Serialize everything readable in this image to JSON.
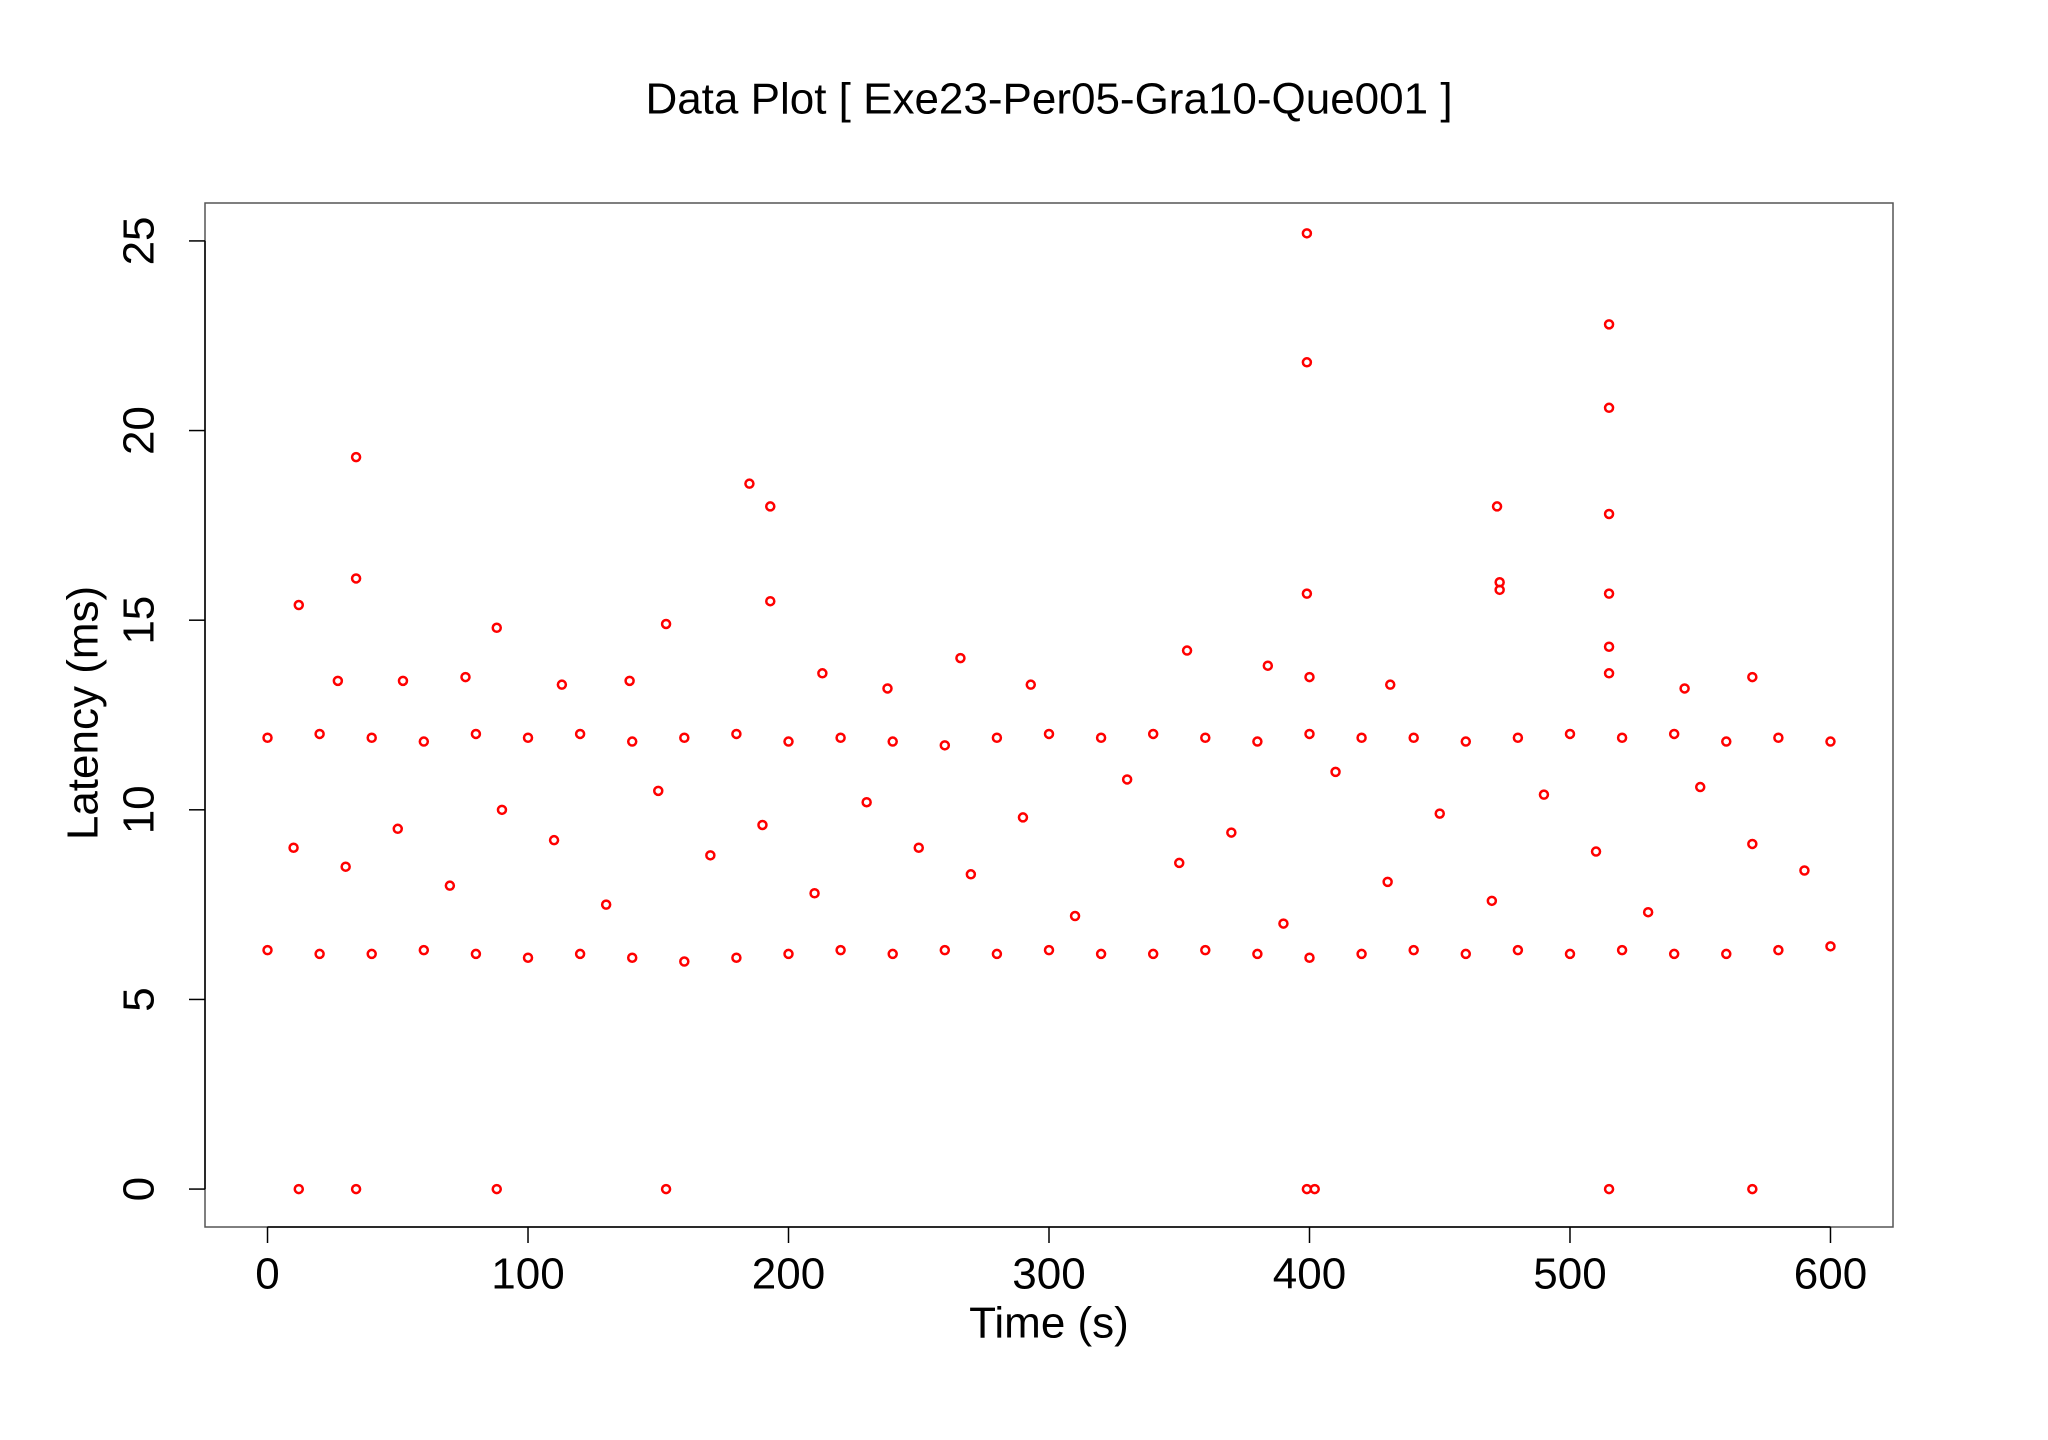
{
  "chart_data": {
    "type": "scatter",
    "title": "Data Plot [ Exe23-Per05-Gra10-Que001 ]",
    "x_label": "Time (s)",
    "y_label": "Latency (ms)",
    "color": "#ff0000",
    "xlim": [
      -24,
      624
    ],
    "ylim": [
      -1.0,
      26.0
    ],
    "xticks": [
      0,
      100,
      200,
      300,
      400,
      500,
      600
    ],
    "yticks": [
      0,
      5,
      10,
      15,
      20,
      25
    ],
    "x": [
      12,
      34,
      34,
      88,
      153,
      185,
      193,
      193,
      266,
      353,
      399,
      399,
      399,
      472,
      473,
      473,
      515,
      515,
      515,
      515,
      515,
      515,
      12,
      34,
      88,
      153,
      399,
      402,
      515,
      570,
      27,
      52,
      76,
      113,
      139,
      213,
      238,
      293,
      384,
      431,
      544,
      570,
      400,
      0,
      20,
      40,
      60,
      80,
      100,
      120,
      140,
      160,
      180,
      200,
      220,
      240,
      260,
      280,
      300,
      320,
      340,
      360,
      380,
      400,
      420,
      440,
      460,
      480,
      500,
      520,
      540,
      560,
      580,
      600,
      0,
      20,
      40,
      60,
      80,
      100,
      120,
      140,
      160,
      180,
      200,
      220,
      240,
      260,
      280,
      300,
      320,
      340,
      360,
      380,
      400,
      420,
      440,
      460,
      480,
      500,
      520,
      540,
      560,
      580,
      600,
      10,
      30,
      50,
      70,
      90,
      110,
      130,
      150,
      170,
      190,
      210,
      230,
      250,
      270,
      290,
      310,
      330,
      350,
      370,
      390,
      410,
      430,
      450,
      470,
      490,
      510,
      530,
      550,
      570,
      590
    ],
    "values": [
      15.4,
      19.3,
      16.1,
      14.8,
      14.9,
      18.6,
      18.0,
      15.5,
      14.0,
      14.2,
      25.2,
      21.8,
      15.7,
      18.0,
      16.0,
      15.8,
      22.8,
      20.6,
      17.8,
      15.7,
      14.3,
      13.6,
      0,
      0,
      0,
      0,
      0,
      0,
      0,
      0,
      13.4,
      13.4,
      13.5,
      13.3,
      13.4,
      13.6,
      13.2,
      13.3,
      13.8,
      13.3,
      13.2,
      13.5,
      13.5,
      6.3,
      6.2,
      6.2,
      6.3,
      6.2,
      6.1,
      6.2,
      6.1,
      6.0,
      6.1,
      6.2,
      6.3,
      6.2,
      6.3,
      6.2,
      6.3,
      6.2,
      6.2,
      6.3,
      6.2,
      6.1,
      6.2,
      6.3,
      6.2,
      6.3,
      6.2,
      6.3,
      6.2,
      6.2,
      6.3,
      6.4,
      11.9,
      12.0,
      11.9,
      11.8,
      12.0,
      11.9,
      12.0,
      11.8,
      11.9,
      12.0,
      11.8,
      11.9,
      11.8,
      11.7,
      11.9,
      12.0,
      11.9,
      12.0,
      11.9,
      11.8,
      12.0,
      11.9,
      11.9,
      11.8,
      11.9,
      12.0,
      11.9,
      12.0,
      11.8,
      11.9,
      11.8,
      9.0,
      8.5,
      9.5,
      8.0,
      10.0,
      9.2,
      7.5,
      10.5,
      8.8,
      9.6,
      7.8,
      10.2,
      9.0,
      8.3,
      9.8,
      7.2,
      10.8,
      8.6,
      9.4,
      7.0,
      11.0,
      8.1,
      9.9,
      7.6,
      10.4,
      8.9,
      7.3,
      10.6,
      9.1,
      8.4
    ]
  }
}
